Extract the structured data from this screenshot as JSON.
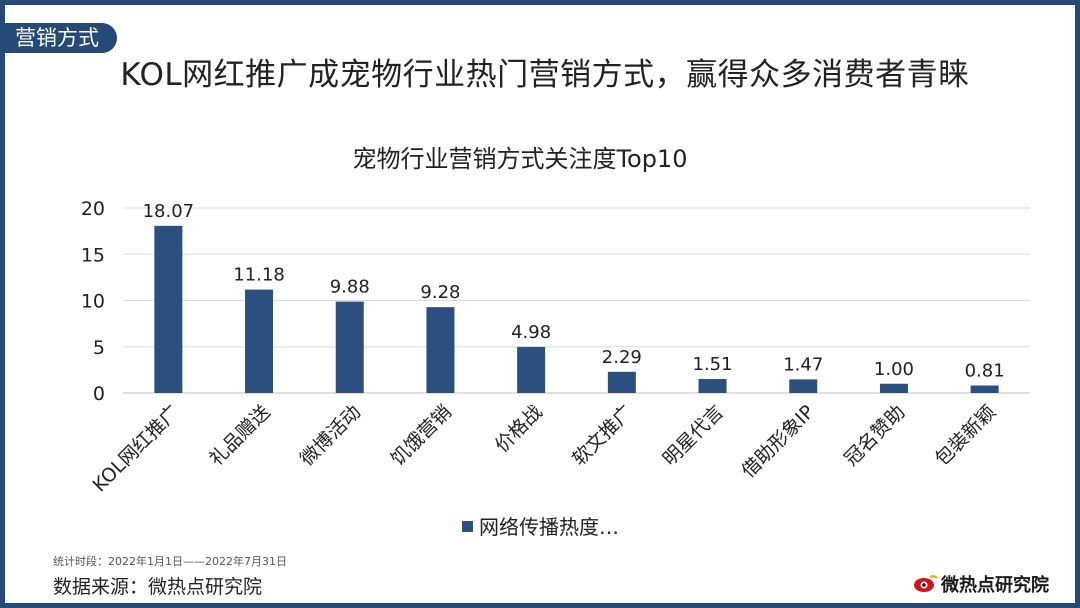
{
  "section_tag": "营销方式",
  "main_title": "KOL网红推广成宠物行业热门营销方式，赢得众多消费者青睐",
  "chart_data": {
    "type": "bar",
    "title": "宠物行业营销方式关注度Top10",
    "categories": [
      "KOL网红推广",
      "礼品赠送",
      "微博活动",
      "饥饿营销",
      "价格战",
      "软文推广",
      "明星代言",
      "借助形象IP",
      "冠名赞助",
      "包装新颖"
    ],
    "series": [
      {
        "name": "网络传播热度…",
        "values": [
          18.07,
          11.18,
          9.88,
          9.28,
          4.98,
          2.29,
          1.51,
          1.47,
          1.0,
          0.81
        ]
      }
    ],
    "data_labels": [
      "18.07",
      "11.18",
      "9.88",
      "9.28",
      "4.98",
      "2.29",
      "1.51",
      "1.47",
      "1.00",
      "0.81"
    ],
    "yticks": [
      0,
      5,
      10,
      15,
      20
    ],
    "ylim": [
      0,
      20
    ],
    "grid": true,
    "legend_position": "bottom",
    "bar_color": "#2b4f7e"
  },
  "footer": {
    "period": "统计时段：2022年1月1日——2022年7月31日",
    "source": "数据来源：微热点研究院",
    "brand": "微热点研究院",
    "brand_icon": "eye-logo-icon"
  }
}
